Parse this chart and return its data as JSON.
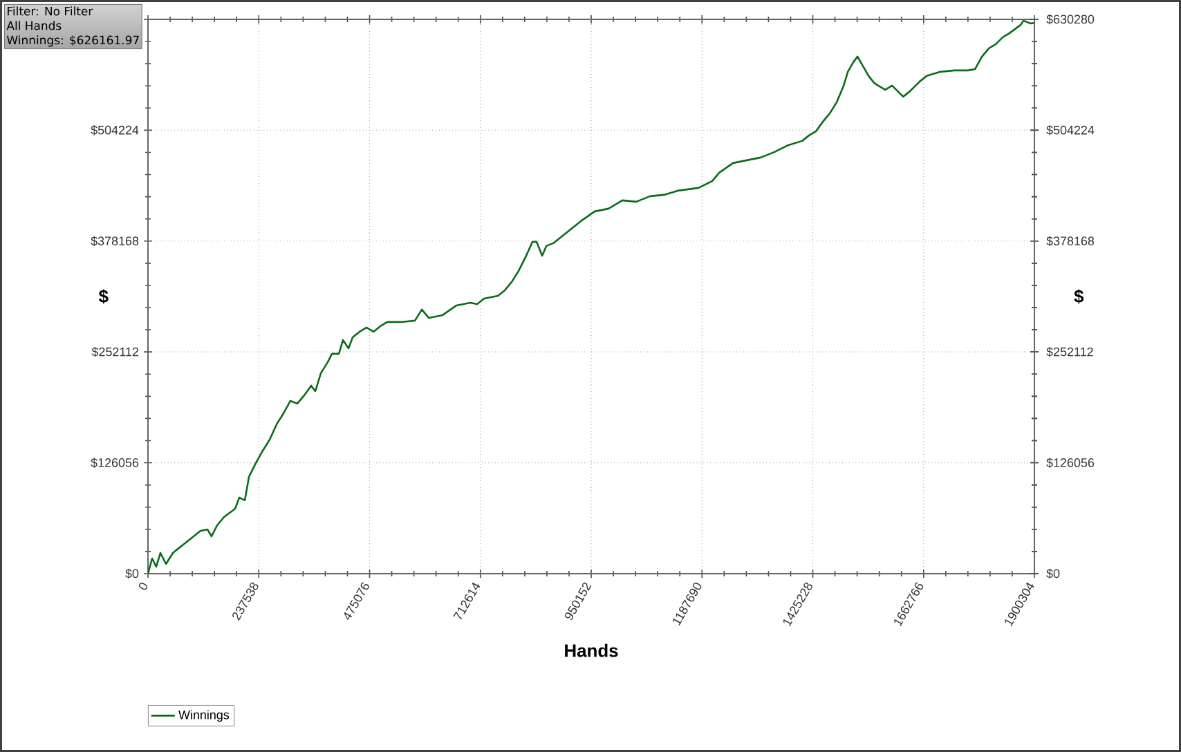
{
  "chart_data": {
    "type": "line",
    "xlabel": "Hands",
    "ylabel": "$",
    "y2label": "$",
    "annotations": [
      "Filter: No Filter",
      "All Hands",
      "Winnings: $626161.97"
    ],
    "xlim": [
      0,
      1900304
    ],
    "xticks": [
      0,
      237538,
      475076,
      712614,
      950152,
      1187690,
      1425228,
      1662766,
      1900304
    ],
    "ylim": [
      0,
      630280
    ],
    "yticks": [
      {
        "value": 0,
        "label": "$0"
      },
      {
        "value": 126056,
        "label": "$126056"
      },
      {
        "value": 252112,
        "label": "$252112"
      },
      {
        "value": 378168,
        "label": "$378168"
      },
      {
        "value": 504224,
        "label": "$504224"
      },
      {
        "value": 630280,
        "label": null
      }
    ],
    "y2lim": [
      0,
      630280
    ],
    "y2ticks": [
      {
        "value": 0,
        "label": "$0"
      },
      {
        "value": 126056,
        "label": "$126056"
      },
      {
        "value": 252112,
        "label": "$252112"
      },
      {
        "value": 378168,
        "label": "$378168"
      },
      {
        "value": 504224,
        "label": "$504224"
      },
      {
        "value": 630280,
        "label": "$630280"
      }
    ],
    "grid": true,
    "legend": "bottom left",
    "line_style": "solid",
    "series": [
      {
        "name": "Winnings",
        "color": "#0b6b1a",
        "x": [
          0,
          8900,
          17790,
          26690,
          38550,
          53370,
          83020,
          112670,
          127500,
          136390,
          148250,
          163080,
          186800,
          195690,
          207550,
          216450,
          231270,
          246100,
          260920,
          275750,
          290570,
          305390,
          320220,
          335050,
          349870,
          358770,
          370630,
          385450,
          394350,
          409170,
          418070,
          429930,
          438820,
          453650,
          468470,
          483300,
          498120,
          512950,
          542600,
          572250,
          587070,
          601900,
          631550,
          661200,
          690850,
          705670,
          720500,
          750150,
          764970,
          779800,
          794620,
          809450,
          824270,
          833170,
          845030,
          853920,
          868750,
          898400,
          928050,
          957700,
          987350,
          1002170,
          1017000,
          1046650,
          1076300,
          1105950,
          1135600,
          1180070,
          1209720,
          1224550,
          1254200,
          1283850,
          1313500,
          1343150,
          1372800,
          1402450,
          1417270,
          1432100,
          1446920,
          1461750,
          1476570,
          1491400,
          1500290,
          1512150,
          1521050,
          1532910,
          1544770,
          1556630,
          1565520,
          1580350,
          1595170,
          1610000,
          1618890,
          1633720,
          1654470,
          1669300,
          1698950,
          1728600,
          1758250,
          1773070,
          1787900,
          1802720,
          1817550,
          1832370,
          1847200,
          1870920,
          1876850,
          1891670,
          1900304
        ],
        "values": [
          0,
          17290,
          7860,
          23580,
          11000,
          23580,
          36160,
          48730,
          50300,
          42440,
          55020,
          64450,
          73880,
          86460,
          83320,
          110040,
          125760,
          139910,
          152480,
          169780,
          182350,
          196500,
          193360,
          202790,
          213790,
          207500,
          227940,
          240520,
          249950,
          249950,
          265670,
          256240,
          268810,
          275100,
          279820,
          275100,
          281390,
          286100,
          286100,
          287680,
          300250,
          290820,
          293960,
          304970,
          308110,
          306540,
          312830,
          315970,
          322260,
          331690,
          344270,
          359990,
          377280,
          377280,
          361560,
          372560,
          375710,
          388280,
          400860,
          411860,
          415010,
          419720,
          424440,
          422870,
          429160,
          430730,
          435440,
          438590,
          446450,
          455880,
          466880,
          470030,
          473170,
          479460,
          487320,
          492040,
          498320,
          503040,
          514040,
          523480,
          536050,
          554920,
          570640,
          581640,
          587930,
          576920,
          565920,
          558060,
          554920,
          550200,
          554920,
          547060,
          542340,
          548630,
          559630,
          565920,
          570640,
          572210,
          572210,
          573780,
          587930,
          597360,
          602080,
          609940,
          614650,
          624080,
          628800,
          625650,
          626162
        ]
      }
    ]
  }
}
